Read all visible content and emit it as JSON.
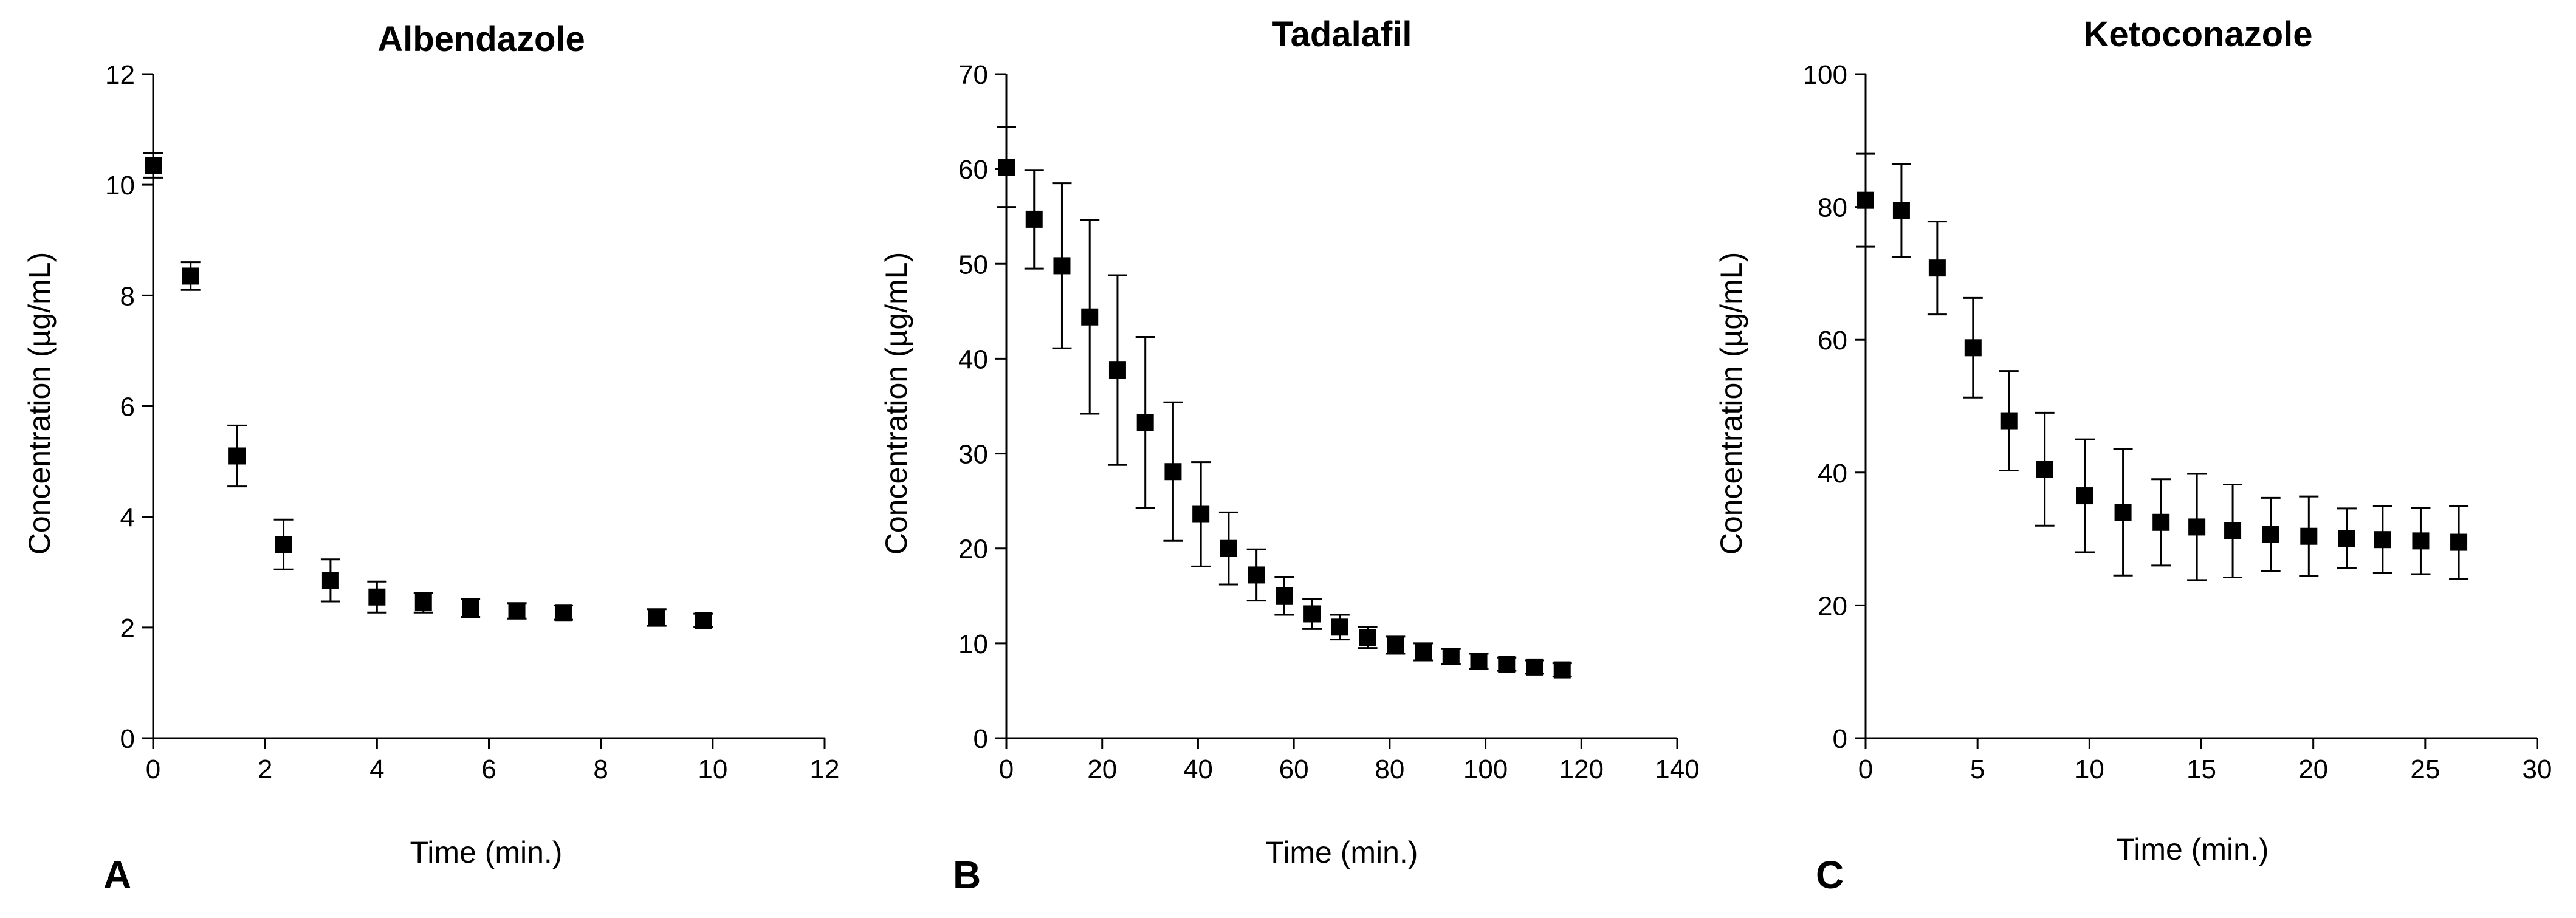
{
  "chart_data": [
    {
      "panel": "A",
      "type": "scatter",
      "title": "Albendazole",
      "xlabel": "Time (min.)",
      "ylabel": "Concentration (µg/mL)",
      "xlim": [
        0,
        12
      ],
      "ylim": [
        0,
        12
      ],
      "xticks": [
        "0",
        "2",
        "4",
        "6",
        "8",
        "10",
        "12"
      ],
      "yticks": [
        "0",
        "2",
        "4",
        "6",
        "8",
        "10",
        "12"
      ],
      "grid": false,
      "series": [
        {
          "name": "Albendazole",
          "x": [
            0,
            0.67,
            1.5,
            2.33,
            3.17,
            4.0,
            4.83,
            5.67,
            6.5,
            7.33,
            9.0,
            9.83
          ],
          "y": [
            10.35,
            8.35,
            5.1,
            3.5,
            2.85,
            2.55,
            2.45,
            2.35,
            2.3,
            2.27,
            2.18,
            2.13
          ],
          "err": [
            0.22,
            0.25,
            0.55,
            0.45,
            0.38,
            0.28,
            0.18,
            0.16,
            0.14,
            0.13,
            0.15,
            0.12
          ]
        }
      ]
    },
    {
      "panel": "B",
      "type": "scatter",
      "title": "Tadalafil",
      "xlabel": "Time (min.)",
      "ylabel": "Concentration (µg/mL)",
      "xlim": [
        0,
        140
      ],
      "ylim": [
        0,
        70
      ],
      "xticks": [
        "0",
        "20",
        "40",
        "60",
        "80",
        "100",
        "120",
        "140"
      ],
      "yticks": [
        "0",
        "10",
        "20",
        "30",
        "40",
        "50",
        "60",
        "70"
      ],
      "grid": false,
      "series": [
        {
          "name": "Tadalafil",
          "x": [
            0,
            5.8,
            11.6,
            17.4,
            23.2,
            29,
            34.8,
            40.6,
            46.4,
            52.2,
            58,
            63.8,
            69.6,
            75.4,
            81.2,
            87,
            92.8,
            98.6,
            104.4,
            110.2,
            116
          ],
          "y": [
            60.2,
            54.7,
            49.8,
            44.4,
            38.8,
            33.3,
            28.1,
            23.6,
            20.0,
            17.2,
            15.0,
            13.1,
            11.7,
            10.6,
            9.8,
            9.1,
            8.6,
            8.1,
            7.8,
            7.5,
            7.2
          ],
          "err": [
            4.2,
            5.2,
            8.7,
            10.2,
            10.0,
            9.0,
            7.3,
            5.5,
            3.8,
            2.7,
            2.0,
            1.6,
            1.3,
            1.1,
            0.9,
            0.9,
            0.8,
            0.8,
            0.7,
            0.7,
            0.7
          ]
        }
      ]
    },
    {
      "panel": "C",
      "type": "scatter",
      "title": "Ketoconazole",
      "xlabel": "Time (min.)",
      "ylabel": "Concentration (µg/mL)",
      "xlim": [
        0,
        30
      ],
      "ylim": [
        0,
        100
      ],
      "xticks": [
        "0",
        "5",
        "10",
        "15",
        "20",
        "25",
        "30"
      ],
      "yticks": [
        "0",
        "20",
        "40",
        "60",
        "80",
        "100"
      ],
      "grid": false,
      "series": [
        {
          "name": "Ketoconazole",
          "x": [
            0,
            1.6,
            3.2,
            4.8,
            6.4,
            8.0,
            9.8,
            11.5,
            13.2,
            14.8,
            16.4,
            18.1,
            19.8,
            21.5,
            23.1,
            24.8,
            26.5
          ],
          "y": [
            81,
            79.5,
            70.8,
            58.8,
            47.8,
            40.5,
            36.5,
            34.0,
            32.5,
            31.8,
            31.2,
            30.7,
            30.4,
            30.1,
            29.9,
            29.7,
            29.5
          ],
          "err": [
            7.0,
            7.0,
            7.0,
            7.5,
            7.5,
            8.5,
            8.5,
            9.5,
            6.5,
            8.0,
            7.0,
            5.5,
            6.0,
            4.5,
            5.0,
            5.0,
            5.5
          ]
        }
      ]
    }
  ]
}
